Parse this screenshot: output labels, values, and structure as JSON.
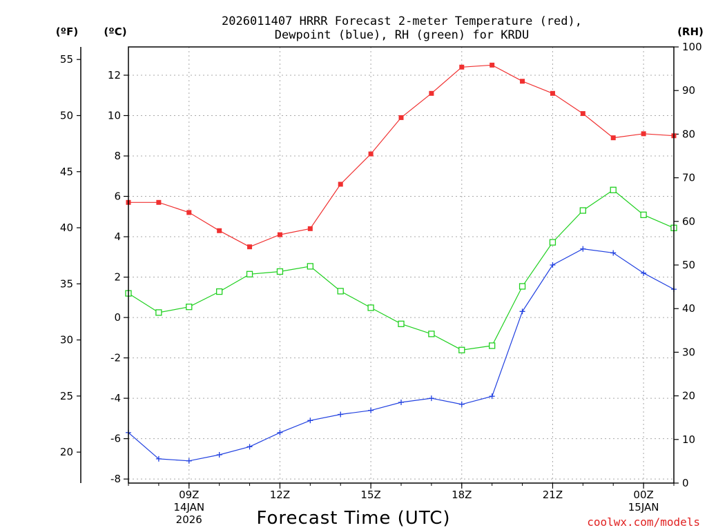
{
  "chart_data": {
    "type": "line",
    "title_line1": "2026011407 HRRR Forecast 2-meter Temperature (red),",
    "title_line2": "Dewpoint (blue), RH (green) for KRDU",
    "xlabel": "Forecast Time (UTC)",
    "credit": "coolwx.com/models",
    "units": {
      "fahrenheit": "(ºF)",
      "celsius": "(ºC)",
      "rh": "(RH)"
    },
    "x": [
      7,
      8,
      9,
      10,
      11,
      12,
      13,
      14,
      15,
      16,
      17,
      18,
      19,
      20,
      21,
      22,
      23,
      24,
      25
    ],
    "xlim": [
      7,
      25
    ],
    "x_ticks": [
      {
        "x": 9,
        "label": "09Z",
        "sub1": "14JAN",
        "sub2": "2026"
      },
      {
        "x": 12,
        "label": "12Z",
        "sub1": "",
        "sub2": ""
      },
      {
        "x": 15,
        "label": "15Z",
        "sub1": "",
        "sub2": ""
      },
      {
        "x": 18,
        "label": "18Z",
        "sub1": "",
        "sub2": ""
      },
      {
        "x": 21,
        "label": "21Z",
        "sub1": "",
        "sub2": ""
      },
      {
        "x": 24,
        "label": "00Z",
        "sub1": "15JAN",
        "sub2": ""
      }
    ],
    "ylim_celsius": [
      -8.2,
      13.4
    ],
    "celsius_ticks": [
      "-8",
      "-6",
      "-4",
      "-2",
      "0",
      "2",
      "4",
      "6",
      "8",
      "10",
      "12"
    ],
    "fahrenheit_ticks": [
      "20",
      "25",
      "30",
      "35",
      "40",
      "45",
      "50",
      "55"
    ],
    "rh_ticks": [
      "0",
      "10",
      "20",
      "30",
      "40",
      "50",
      "60",
      "70",
      "80",
      "90",
      "100"
    ],
    "ylim_rh": [
      0,
      100
    ],
    "series": [
      {
        "name": "Temperature",
        "axis": "celsius",
        "color": "#f03030",
        "marker": "filled-square",
        "values": [
          5.7,
          5.7,
          5.2,
          4.3,
          3.5,
          4.1,
          4.4,
          6.6,
          8.1,
          9.9,
          11.1,
          12.4,
          12.5,
          11.7,
          11.1,
          10.1,
          8.9,
          9.1,
          9.0
        ]
      },
      {
        "name": "Dewpoint",
        "axis": "celsius",
        "color": "#2040e0",
        "marker": "plus",
        "values": [
          -5.7,
          -7.0,
          -7.1,
          -6.8,
          -6.4,
          -5.7,
          -5.1,
          -4.8,
          -4.6,
          -4.2,
          -4.0,
          -4.3,
          -3.9,
          0.3,
          2.6,
          3.4,
          3.2,
          2.2,
          1.4
        ]
      },
      {
        "name": "RH",
        "axis": "rh",
        "color": "#20d020",
        "marker": "open-square",
        "values": [
          43.5,
          39.1,
          40.4,
          43.9,
          47.9,
          48.5,
          49.7,
          44.0,
          40.2,
          36.5,
          34.2,
          30.5,
          31.5,
          45.1,
          55.2,
          62.5,
          67.2,
          61.5,
          58.5
        ]
      }
    ]
  }
}
